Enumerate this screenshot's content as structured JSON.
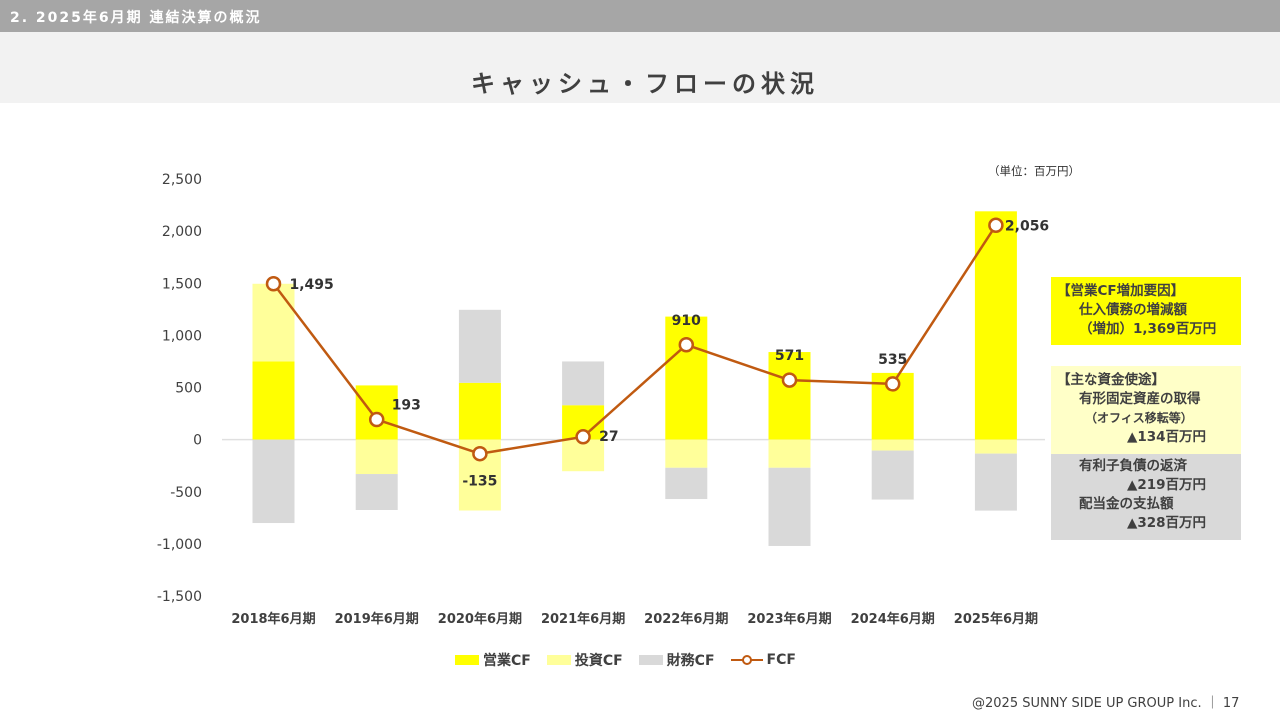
{
  "header": {
    "section": "2. 2025年6月期 連結決算の概況",
    "title": "キャッシュ・フローの状況"
  },
  "unit": "（単位：百万円）",
  "colors": {
    "operating": "#ffff00",
    "investing": "#ffff9a",
    "financing": "#d9d9d9",
    "fcf": "#c05a11"
  },
  "chart_data": {
    "type": "bar",
    "stacked": true,
    "categories": [
      "2018年6月期",
      "2019年6月期",
      "2020年6月期",
      "2021年6月期",
      "2022年6月期",
      "2023年6月期",
      "2024年6月期",
      "2025年6月期"
    ],
    "ylim": [
      -1500,
      2500
    ],
    "yticks": [
      2500,
      2000,
      1500,
      1000,
      500,
      0,
      -500,
      -1000,
      -1500
    ],
    "ytick_labels": [
      "2,500",
      "2,000",
      "1,500",
      "1,000",
      "500",
      "0",
      "-500",
      "-1,000",
      "-1,500"
    ],
    "series": [
      {
        "name": "営業CF",
        "values": [
          750,
          520,
          545,
          330,
          1180,
          840,
          640,
          2190
        ]
      },
      {
        "name": "投資CF",
        "values": [
          745,
          -330,
          -680,
          -303,
          -270,
          -270,
          -105,
          -134
        ]
      },
      {
        "name": "財務CF",
        "values": [
          -800,
          -345,
          700,
          420,
          -300,
          -750,
          -470,
          -547
        ]
      }
    ],
    "line_series": {
      "name": "FCF",
      "values": [
        1495,
        193,
        -135,
        27,
        910,
        571,
        535,
        2056
      ]
    },
    "data_labels": [
      "1,495",
      "193",
      "-135",
      "27",
      "910",
      "571",
      "535",
      "2,056"
    ],
    "grid": false,
    "legend_position": "bottom"
  },
  "legend": {
    "operating": "営業CF",
    "investing": "投資CF",
    "financing": "財務CF",
    "fcf": "FCF"
  },
  "notes": {
    "box1": {
      "line1": "【営業CF増加要因】",
      "line2": "仕入債務の増減額",
      "line3": "（増加）1,369百万円"
    },
    "box2": {
      "line1": "【主な資金使途】",
      "line2": "有形固定資産の取得",
      "line3": "（オフィス移転等）",
      "line4": "▲134百万円"
    },
    "box3": {
      "line1": "有利子負債の返済",
      "line2": "▲219百万円",
      "line3": "配当金の支払額",
      "line4": "▲328百万円"
    }
  },
  "footer": "@2025 SUNNY SIDE UP GROUP Inc. ｜ 17"
}
